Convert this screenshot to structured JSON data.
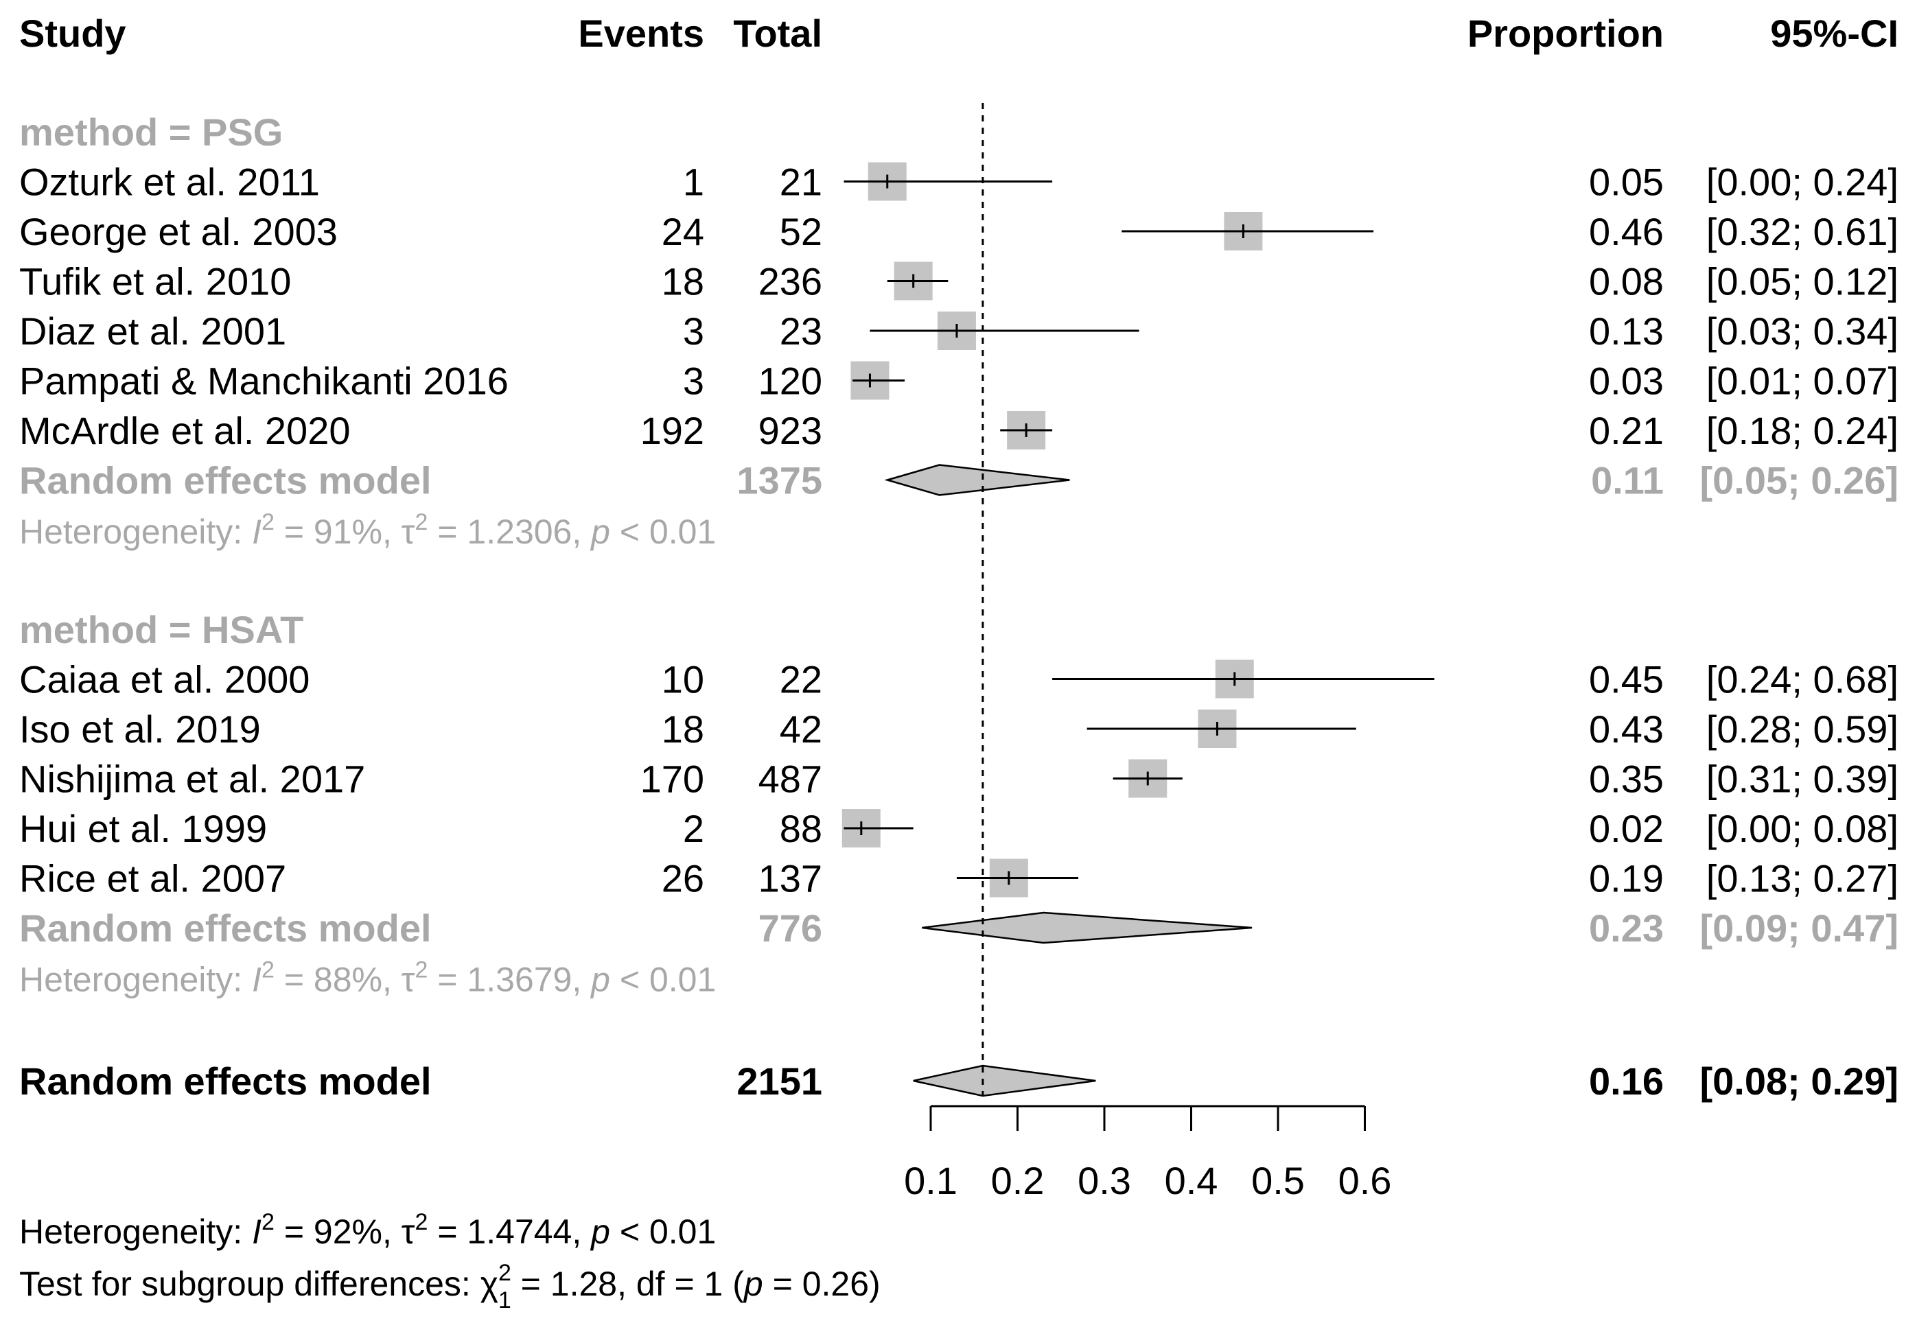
{
  "columns": {
    "study": "Study",
    "events": "Events",
    "total": "Total",
    "proportion": "Proportion",
    "ci": "95%-CI"
  },
  "colors": {
    "box": "#c4c4c4",
    "subgroup_text": "#a8a8a8",
    "text": "#000000"
  },
  "chart_data": {
    "type": "forest",
    "xlabel": "",
    "xlim": [
      0.1,
      0.6
    ],
    "xticks": [
      0.1,
      0.2,
      0.3,
      0.4,
      0.5,
      0.6
    ],
    "xtick_labels": [
      "0.1",
      "0.2",
      "0.3",
      "0.4",
      "0.5",
      "0.6"
    ],
    "reference_line": 0.16,
    "groups": [
      {
        "label": "method = PSG",
        "studies": [
          {
            "study": "Ozturk et al. 2011",
            "events": "1",
            "total": "21",
            "prop": 0.05,
            "lo": 0.0,
            "hi": 0.24,
            "prop_label": "0.05",
            "ci_label": "[0.00; 0.24]"
          },
          {
            "study": "George et al. 2003",
            "events": "24",
            "total": "52",
            "prop": 0.46,
            "lo": 0.32,
            "hi": 0.61,
            "prop_label": "0.46",
            "ci_label": "[0.32; 0.61]"
          },
          {
            "study": "Tufik et al. 2010",
            "events": "18",
            "total": "236",
            "prop": 0.08,
            "lo": 0.05,
            "hi": 0.12,
            "prop_label": "0.08",
            "ci_label": "[0.05; 0.12]"
          },
          {
            "study": "Diaz et al. 2001",
            "events": "3",
            "total": "23",
            "prop": 0.13,
            "lo": 0.03,
            "hi": 0.34,
            "prop_label": "0.13",
            "ci_label": "[0.03; 0.34]"
          },
          {
            "study": "Pampati & Manchikanti 2016",
            "events": "3",
            "total": "120",
            "prop": 0.03,
            "lo": 0.01,
            "hi": 0.07,
            "prop_label": "0.03",
            "ci_label": "[0.01; 0.07]"
          },
          {
            "study": "McArdle et al. 2020",
            "events": "192",
            "total": "923",
            "prop": 0.21,
            "lo": 0.18,
            "hi": 0.24,
            "prop_label": "0.21",
            "ci_label": "[0.18; 0.24]"
          }
        ],
        "model": {
          "label": "Random effects model",
          "total": "1375",
          "prop": 0.11,
          "lo": 0.05,
          "hi": 0.26,
          "prop_label": "0.11",
          "ci_label": "[0.05; 0.26]"
        },
        "heterogeneity": {
          "prefix": "Heterogeneity: ",
          "i2": "I",
          "i2_value": " = 91%, ",
          "tau": "τ",
          "tau_value": " = 1.2306, ",
          "p": "p",
          "p_value": " < 0.01"
        }
      },
      {
        "label": "method = HSAT",
        "studies": [
          {
            "study": "Caiaa et al. 2000",
            "events": "10",
            "total": "22",
            "prop": 0.45,
            "lo": 0.24,
            "hi": 0.68,
            "prop_label": "0.45",
            "ci_label": "[0.24; 0.68]"
          },
          {
            "study": "Iso et al. 2019",
            "events": "18",
            "total": "42",
            "prop": 0.43,
            "lo": 0.28,
            "hi": 0.59,
            "prop_label": "0.43",
            "ci_label": "[0.28; 0.59]"
          },
          {
            "study": "Nishijima et al. 2017",
            "events": "170",
            "total": "487",
            "prop": 0.35,
            "lo": 0.31,
            "hi": 0.39,
            "prop_label": "0.35",
            "ci_label": "[0.31; 0.39]"
          },
          {
            "study": "Hui et al. 1999",
            "events": "2",
            "total": "88",
            "prop": 0.02,
            "lo": 0.0,
            "hi": 0.08,
            "prop_label": "0.02",
            "ci_label": "[0.00; 0.08]"
          },
          {
            "study": "Rice et al. 2007",
            "events": "26",
            "total": "137",
            "prop": 0.19,
            "lo": 0.13,
            "hi": 0.27,
            "prop_label": "0.19",
            "ci_label": "[0.13; 0.27]"
          }
        ],
        "model": {
          "label": "Random effects model",
          "total": "776",
          "prop": 0.23,
          "lo": 0.09,
          "hi": 0.47,
          "prop_label": "0.23",
          "ci_label": "[0.09; 0.47]"
        },
        "heterogeneity": {
          "prefix": "Heterogeneity: ",
          "i2": "I",
          "i2_value": " = 88%, ",
          "tau": "τ",
          "tau_value": " = 1.3679, ",
          "p": "p",
          "p_value": " < 0.01"
        }
      }
    ],
    "overall": {
      "label": "Random effects model",
      "total": "2151",
      "prop": 0.16,
      "lo": 0.08,
      "hi": 0.29,
      "prop_label": "0.16",
      "ci_label": "[0.08; 0.29]"
    },
    "overall_heterogeneity": {
      "prefix": "Heterogeneity: ",
      "i2": "I",
      "i2_value": " = 92%, ",
      "tau": "τ",
      "tau_value": " = 1.4744, ",
      "p": "p",
      "p_value": " < 0.01"
    },
    "subgroup_test": {
      "prefix": "Test for subgroup differences: ",
      "chi": "χ",
      "chi_sub": "1",
      "chi_sup": "2",
      "value": " = 1.28, df = 1 (",
      "p": "p",
      "p_value": " = 0.26)"
    }
  }
}
